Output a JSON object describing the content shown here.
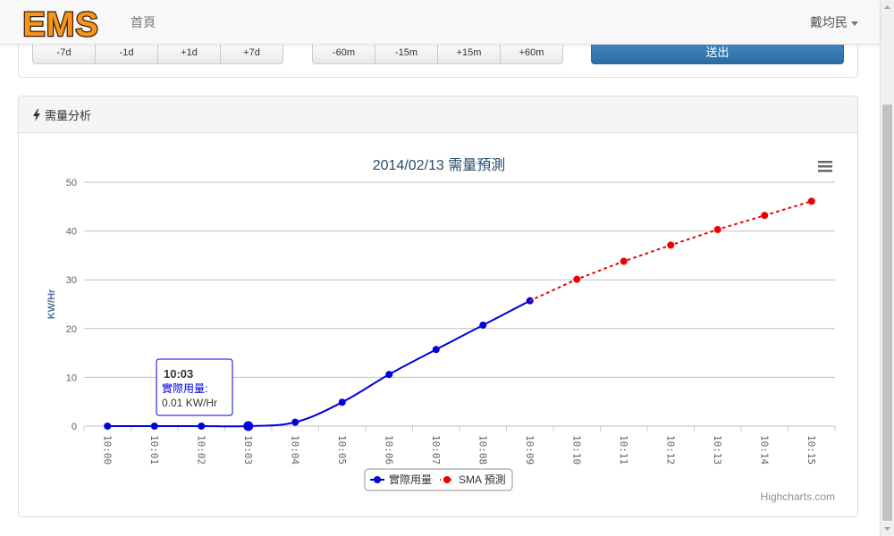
{
  "nav": {
    "brand": "EMS",
    "home": "首頁",
    "user": "戴均民"
  },
  "controls": {
    "day_buttons": [
      "-7d",
      "-1d",
      "+1d",
      "+7d"
    ],
    "minute_buttons": [
      "-60m",
      "-15m",
      "+15m",
      "+60m"
    ],
    "submit": "送出"
  },
  "panel": {
    "title": "需量分析"
  },
  "tooltip": {
    "title": "10:03",
    "series": "實際用量:",
    "value": "0.01 KW/Hr"
  },
  "credits": "Highcharts.com",
  "colors": {
    "actual": "#0000dd",
    "forecast": "#ee0000",
    "title": "#274b6d",
    "axis_label": "#4d759e"
  },
  "chart_data": {
    "type": "line",
    "title": "2014/02/13 需量預測",
    "ylabel": "KW/Hr",
    "ylim": [
      0,
      50
    ],
    "yticks": [
      0,
      10,
      20,
      30,
      40,
      50
    ],
    "categories": [
      "10:00",
      "10:01",
      "10:02",
      "10:03",
      "10:04",
      "10:05",
      "10:06",
      "10:07",
      "10:08",
      "10:09",
      "10:10",
      "10:11",
      "10:12",
      "10:13",
      "10:14",
      "10:15"
    ],
    "series": [
      {
        "name": "實際用量",
        "style": "solid",
        "values": [
          0,
          0,
          0,
          0.01,
          0.8,
          4.9,
          10.6,
          15.7,
          20.7,
          25.7,
          null,
          null,
          null,
          null,
          null,
          null
        ]
      },
      {
        "name": "SMA 預測",
        "style": "dotted",
        "values": [
          null,
          null,
          null,
          null,
          null,
          null,
          null,
          null,
          null,
          25.7,
          30.1,
          33.8,
          37.1,
          40.3,
          43.2,
          46.1
        ]
      }
    ],
    "legend_position": "bottom-center",
    "grid": true
  }
}
